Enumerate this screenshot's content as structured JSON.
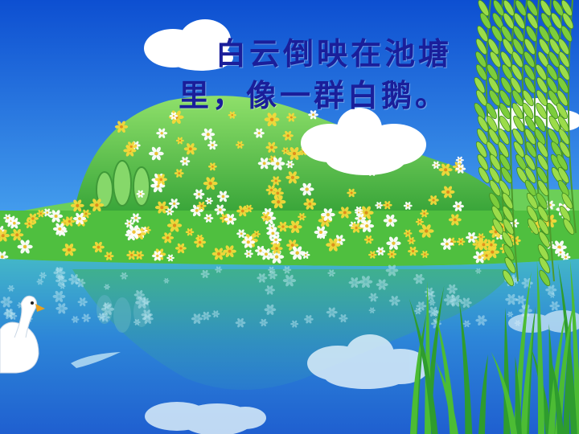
{
  "slide": {
    "caption_line_1": "白云倒映在池塘",
    "caption_line_2": "里，像一群白鹅。"
  },
  "colors": {
    "sky_top": "#0d4fd1",
    "sky_bottom": "#b9e6fb",
    "hill": "#5cc04a",
    "water": "#2d86d8",
    "caption": "#1a1e9a"
  },
  "scene_elements": [
    "cloud",
    "hill",
    "flower-meadow",
    "pond",
    "swan",
    "willow-tree",
    "reeds"
  ]
}
